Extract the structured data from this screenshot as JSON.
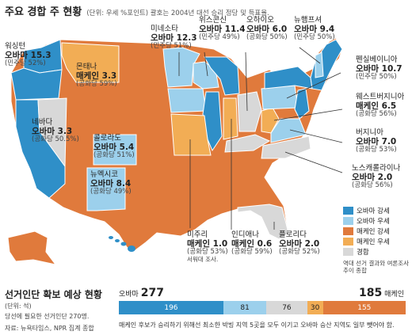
{
  "title": "주요 경합 주 현황",
  "subtitle": "(단위: 우세 %포인트) 괄호는 2004년 대선 승리 정당 및 득표율.",
  "colors": {
    "obama_strong": "#2f8fc8",
    "obama_lean": "#9cd0ec",
    "mccain_strong": "#e07a3c",
    "mccain_lean": "#f2ad55",
    "tossup": "#d8d8d8"
  },
  "states": [
    {
      "name": "워싱턴",
      "value": "오바마 15.3",
      "prev": "(민주당 52%)"
    },
    {
      "name": "몬태나",
      "value": "매케인 3.3",
      "prev": "(공화당 59%)"
    },
    {
      "name": "미네소타",
      "value": "오바마 12.3",
      "prev": "(민주당 51%)"
    },
    {
      "name": "위스콘신",
      "value": "오바마 11.4",
      "prev": "(민주당 49%)"
    },
    {
      "name": "오하이오",
      "value": "오바마 6.0",
      "prev": "(공화당 50%)"
    },
    {
      "name": "뉴햄프셔",
      "value": "오바마 9.4",
      "prev": "(민주당 50%)"
    },
    {
      "name": "펜실베이니아",
      "value": "오바마 10.7",
      "prev": "(민주당 50%)"
    },
    {
      "name": "웨스트버지니아",
      "value": "매케인 6.5",
      "prev": "(공화당 56%)"
    },
    {
      "name": "버지니아",
      "value": "오바마 7.0",
      "prev": "(공화당 53%)"
    },
    {
      "name": "노스캐롤라이나",
      "value": "오바마 2.0",
      "prev": "(공화당 56%)"
    },
    {
      "name": "네바다",
      "value": "오바마 3.3",
      "prev": "(공화당 50.5%)"
    },
    {
      "name": "콜로라도",
      "value": "오바마 5.4",
      "prev": "(공화당 51%)"
    },
    {
      "name": "뉴멕시코",
      "value": "오바마 8.4",
      "prev": "(공화당 49%)"
    },
    {
      "name": "미주리",
      "value": "매케인 1.0",
      "prev": "(공화당 53%)",
      "note": "서워대 조사."
    },
    {
      "name": "인디애나",
      "value": "매케인 0.6",
      "prev": "(공화당 59%)"
    },
    {
      "name": "플로리다",
      "value": "오바마 2.0",
      "prev": "(공화당 52%)"
    }
  ],
  "legend": {
    "items": [
      "오바마 강세",
      "오바마 우세",
      "매케인 강세",
      "매케인 우세",
      "경합"
    ],
    "note": "역대 선거 결과와 여론조사 추이 종합"
  },
  "bottom": {
    "title": "선거인단 확보 예상 현황",
    "unit": "(단위: 석)",
    "needed": "당선에 필요한 선거인단 270명.",
    "source": "자료: 뉴욕타임스, NPR 집계 종합",
    "obama_label": "오바마",
    "obama_total": "277",
    "mccain_total": "185",
    "mccain_label": "매케인",
    "segments": [
      {
        "label": "196",
        "value": 196
      },
      {
        "label": "81",
        "value": 81
      },
      {
        "label": "76",
        "value": 76
      },
      {
        "label": "30",
        "value": 30
      },
      {
        "label": "155",
        "value": 155
      }
    ],
    "note": "매케인 후보가 승리하기 위해선 최소한 박빙 지역 5곳을 모두 이기고 오바마 승산 지역도 일부 뺏어야 함."
  }
}
